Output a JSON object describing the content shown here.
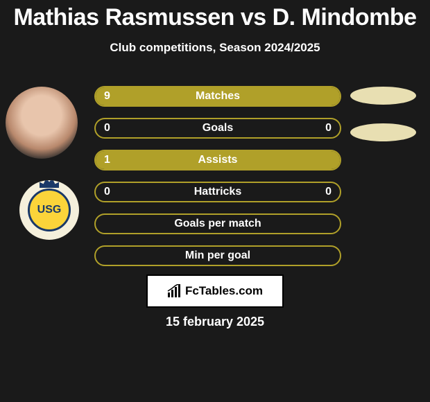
{
  "title": "Mathias Rasmussen vs D. Mindombe",
  "title_fontsize": 34,
  "subtitle": "Club competitions, Season 2024/2025",
  "subtitle_fontsize": 17,
  "colors": {
    "background": "#1a1a1a",
    "accent": "#b0a029",
    "accent_fill": "#b0a029",
    "border_default": "#b0a029",
    "text": "#ffffff",
    "ellipse": "#e8dfb2",
    "watermark_bg": "#ffffff"
  },
  "bars": [
    {
      "label": "Matches",
      "left": "9",
      "right": "",
      "left_fill_pct": 100,
      "right_fill_pct": 0
    },
    {
      "label": "Goals",
      "left": "0",
      "right": "0",
      "left_fill_pct": 0,
      "right_fill_pct": 0
    },
    {
      "label": "Assists",
      "left": "1",
      "right": "",
      "left_fill_pct": 100,
      "right_fill_pct": 0
    },
    {
      "label": "Hattricks",
      "left": "0",
      "right": "0",
      "left_fill_pct": 0,
      "right_fill_pct": 0
    },
    {
      "label": "Goals per match",
      "left": "",
      "right": "",
      "left_fill_pct": 0,
      "right_fill_pct": 0
    },
    {
      "label": "Min per goal",
      "left": "",
      "right": "",
      "left_fill_pct": 0,
      "right_fill_pct": 0
    }
  ],
  "bar_label_fontsize": 16,
  "bar_value_fontsize": 16,
  "watermark_text": "FcTables.com",
  "watermark_fontsize": 17,
  "date": "15 february 2025",
  "date_fontsize": 18,
  "crest_text": "USG"
}
